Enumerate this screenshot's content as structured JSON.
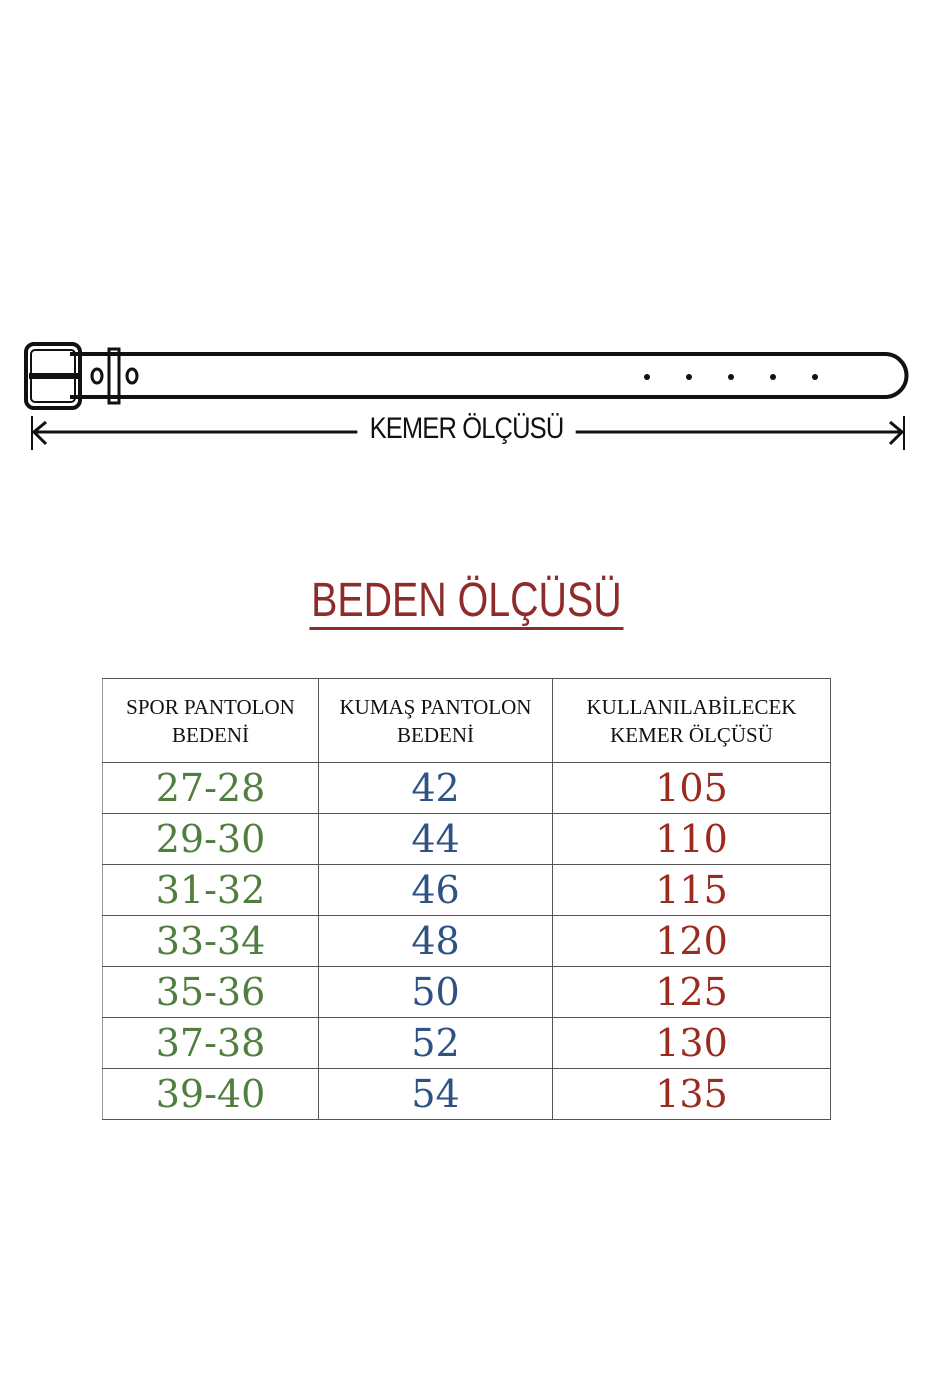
{
  "belt_diagram": {
    "measure_label": "KEMER ÖLÇÜSÜ",
    "icon": "belt-icon"
  },
  "title": "BEDEN ÖLÇÜSÜ",
  "colors": {
    "title": "#8e2b2b",
    "col1": "#4f7e3e",
    "col2": "#2e5283",
    "col3": "#9b2a1f"
  },
  "table": {
    "headers": [
      [
        "SPOR PANTOLON",
        "BEDENİ"
      ],
      [
        "KUMAŞ PANTOLON",
        "BEDENİ"
      ],
      [
        "KULLANILABİLECEK",
        "KEMER ÖLÇÜSÜ"
      ]
    ],
    "rows": [
      [
        "27-28",
        "42",
        "105"
      ],
      [
        "29-30",
        "44",
        "110"
      ],
      [
        "31-32",
        "46",
        "115"
      ],
      [
        "33-34",
        "48",
        "120"
      ],
      [
        "35-36",
        "50",
        "125"
      ],
      [
        "37-38",
        "52",
        "130"
      ],
      [
        "39-40",
        "54",
        "135"
      ]
    ]
  }
}
